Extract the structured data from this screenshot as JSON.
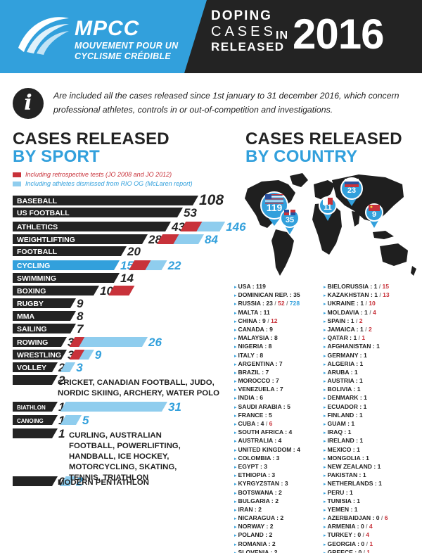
{
  "header": {
    "logo_title": "MPCC",
    "logo_sub_1": "MOUVEMENT POUR UN",
    "logo_sub_2": "CYCLISME CRÉDIBLE",
    "title_1": "DOPING",
    "title_2": "CASES",
    "title_3": "RELEASED",
    "title_in": "IN",
    "year": "2016"
  },
  "info": {
    "icon_letter": "i",
    "text": "Are included all the cases released since 1st january to 31 december 2016, which concern professional athletes, controls in or out-of-competition and investigations."
  },
  "sport_section": {
    "title_1": "CASES RELEASED",
    "title_2": "BY SPORT",
    "legend_retro": "Including retrospective tests (JO 2008 and JO 2012)",
    "legend_rio": "Including athletes dismissed from RIO OG (McLaren report)"
  },
  "country_section": {
    "title_1": "CASES RELEASED",
    "title_2": "BY COUNTRY"
  },
  "colors": {
    "dark": "#232323",
    "blue": "#32a0dc",
    "light_blue": "#8fcdee",
    "red": "#c8323a"
  },
  "chart_data": [
    {
      "type": "bar",
      "orientation": "horizontal",
      "stacked": true,
      "categories": [
        "BASEBALL",
        "US FOOTBALL",
        "ATHLETICS",
        "WEIGHTLIFTING",
        "FOOTBALL",
        "CYCLING",
        "SWIMMING",
        "BOXING",
        "RUGBY",
        "MMA",
        "SAILING",
        "ROWING",
        "WRESTLING",
        "VOLLEY",
        "CRICKET, CANADIAN FOOTBALL, JUDO, NORDIC SKIING, ARCHERY, WATER POLO",
        "BIATHLON",
        "CANOING",
        "CURLING, AUSTRALIAN FOOTBALL, POWERLIFTING, HANDBALL, ICE HOCKEY, MOTORCYCLING, SKATING, TENNIS, TRIATHLON",
        "MODERN PENTATHLON"
      ],
      "series": [
        {
          "values": [
            108,
            53,
            43,
            28,
            20,
            15,
            14,
            10,
            9,
            8,
            7,
            3,
            3,
            2,
            2,
            1,
            1,
            1,
            0
          ]
        },
        {
          "name": "Including retrospective tests (JO 2008 and JO 2012)",
          "values": [
            null,
            null,
            79,
            76,
            null,
            16,
            null,
            11,
            null,
            null,
            null,
            4,
            8,
            null,
            null,
            null,
            null,
            null,
            null
          ]
        },
        {
          "name": "Including athletes dismissed from RIO OG (McLaren report)",
          "values": [
            null,
            null,
            146,
            84,
            null,
            22,
            null,
            null,
            null,
            null,
            null,
            26,
            9,
            3,
            null,
            31,
            5,
            null,
            2
          ]
        }
      ]
    },
    {
      "type": "table",
      "title": "CASES RELEASED BY COUNTRY",
      "map_badges": [
        {
          "country": "USA",
          "value": 119
        },
        {
          "country": "DOMINICAN REP.",
          "value": 35
        },
        {
          "country": "MALTA",
          "value": 11
        },
        {
          "country": "RUSSIA",
          "value": 23
        },
        {
          "country": "CHINA",
          "value": 9
        }
      ],
      "col1": [
        {
          "name": "USA",
          "v": "119"
        },
        {
          "name": "DOMINICAN REP.",
          "v": "35"
        },
        {
          "name": "RUSSIA",
          "v": "23",
          "r": "52",
          "b": "728"
        },
        {
          "name": "MALTA",
          "v": "11"
        },
        {
          "name": "CHINA",
          "v": "9",
          "r": "12"
        },
        {
          "name": "CANADA",
          "v": "9"
        },
        {
          "name": "MALAYSIA",
          "v": "8"
        },
        {
          "name": "NIGERIA",
          "v": "8"
        },
        {
          "name": "ITALY",
          "v": "8"
        },
        {
          "name": "ARGENTINA",
          "v": "7"
        },
        {
          "name": "BRAZIL",
          "v": "7"
        },
        {
          "name": "MOROCCO",
          "v": "7"
        },
        {
          "name": "VENEZUELA",
          "v": "7"
        },
        {
          "name": "INDIA",
          "v": "6"
        },
        {
          "name": "SAUDI ARABIA",
          "v": "5"
        },
        {
          "name": "FRANCE",
          "v": "5"
        },
        {
          "name": "CUBA",
          "v": "4",
          "r": "6"
        },
        {
          "name": "SOUTH AFRICA",
          "v": "4"
        },
        {
          "name": "AUSTRALIA",
          "v": "4"
        },
        {
          "name": "UNITED KINGDOM",
          "v": "4"
        },
        {
          "name": "COLOMBIA",
          "v": "3"
        },
        {
          "name": "EGYPT",
          "v": "3"
        },
        {
          "name": "ETHIOPIA",
          "v": "3"
        },
        {
          "name": "KYRGYZSTAN",
          "v": "3"
        },
        {
          "name": "BOTSWANA",
          "v": "2"
        },
        {
          "name": "BULGARIA",
          "v": "2"
        },
        {
          "name": "IRAN",
          "v": "2"
        },
        {
          "name": "NICARAGUA",
          "v": "2"
        },
        {
          "name": "NORWAY",
          "v": "2"
        },
        {
          "name": "POLAND",
          "v": "2"
        },
        {
          "name": "ROMANIA",
          "v": "2"
        },
        {
          "name": "SLOVENIA",
          "v": "2"
        }
      ],
      "col2": [
        {
          "name": "BIELORUSSIA",
          "v": "1",
          "r": "15"
        },
        {
          "name": "KAZAKHSTAN",
          "v": "1",
          "r": "13"
        },
        {
          "name": "UKRAINE",
          "v": "1",
          "r": "10"
        },
        {
          "name": "MOLDAVIA",
          "v": "1",
          "r": "4"
        },
        {
          "name": "SPAIN",
          "v": "1",
          "r": "2"
        },
        {
          "name": "JAMAICA",
          "v": "1",
          "r": "2"
        },
        {
          "name": "QATAR",
          "v": "1",
          "r": "1"
        },
        {
          "name": "AFGHANISTAN",
          "v": "1"
        },
        {
          "name": "GERMANY",
          "v": "1"
        },
        {
          "name": "ALGERIA",
          "v": "1"
        },
        {
          "name": "ARUBA",
          "v": "1"
        },
        {
          "name": "AUSTRIA",
          "v": "1"
        },
        {
          "name": "BOLIVIA",
          "v": "1"
        },
        {
          "name": "DENMARK",
          "v": "1"
        },
        {
          "name": "ECUADOR",
          "v": "1"
        },
        {
          "name": "FINLAND",
          "v": "1"
        },
        {
          "name": "GUAM",
          "v": "1"
        },
        {
          "name": "IRAQ",
          "v": "1"
        },
        {
          "name": "IRELAND",
          "v": "1"
        },
        {
          "name": "MEXICO",
          "v": "1"
        },
        {
          "name": "MONGOLIA",
          "v": "1"
        },
        {
          "name": "NEW ZEALAND",
          "v": "1"
        },
        {
          "name": "PAKISTAN",
          "v": "1"
        },
        {
          "name": "NETHERLANDS",
          "v": "1"
        },
        {
          "name": "PERU",
          "v": "1"
        },
        {
          "name": "TUNISIA",
          "v": "1"
        },
        {
          "name": "YEMEN",
          "v": "1"
        },
        {
          "name": "AZERBAIDJAN",
          "v": "0",
          "r": "6"
        },
        {
          "name": "ARMENIA",
          "v": "0",
          "r": "4"
        },
        {
          "name": "TURKEY",
          "v": "0",
          "r": "4"
        },
        {
          "name": "GEORGIA",
          "v": "0",
          "r": "1"
        },
        {
          "name": "GREECE",
          "v": "0",
          "r": "1"
        }
      ]
    }
  ]
}
